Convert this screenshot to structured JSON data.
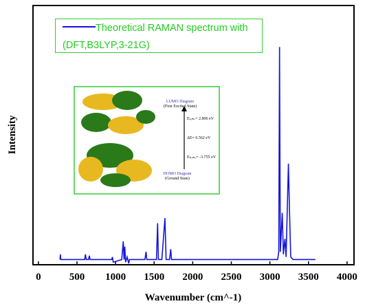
{
  "chart_data": {
    "type": "line",
    "xlabel": "Wavenumber (cm^-1)",
    "ylabel": "Intensity",
    "xlim": [
      -70,
      4090
    ],
    "xticks": [
      0,
      500,
      1000,
      1500,
      2000,
      2500,
      3000,
      3500,
      4000
    ],
    "ylim": [
      0,
      100
    ],
    "legend": "upper left",
    "series": [
      {
        "name": "Theoretical RAMAN spectrum with (DFT,B3LYP,3-21G)",
        "color": "#1414dc",
        "x": [
          280,
          285,
          290,
          600,
          610,
          620,
          650,
          660,
          670,
          950,
          960,
          970,
          1080,
          1100,
          1110,
          1120,
          1130,
          1150,
          1170,
          1180,
          1380,
          1395,
          1405,
          1530,
          1545,
          1555,
          1600,
          1640,
          1655,
          1700,
          1715,
          1725,
          2100,
          3100,
          3115,
          3125,
          3135,
          3160,
          3175,
          3195,
          3210,
          3240,
          3255,
          3270,
          3300,
          3590
        ],
        "values": [
          2,
          4,
          2,
          2,
          4,
          2,
          2,
          3.5,
          2,
          2,
          3,
          1,
          2,
          9,
          2,
          7,
          1,
          3,
          0.5,
          2,
          2,
          5,
          2,
          2,
          16,
          2,
          2,
          18,
          2,
          2,
          6,
          2,
          2,
          2,
          5,
          84,
          5,
          20,
          4,
          10,
          3,
          39,
          20,
          3,
          2,
          2
        ]
      }
    ],
    "inset": {
      "title": "LUMO Diagram",
      "subtitle": "(First Excited State)",
      "lumo": "Eₗᵤₘₒ= 2.806 eV",
      "gap": "ΔE= 6.562 eV",
      "homo": "Eₕₒₘₒ= -3.755 eV",
      "bottom_title": "HOMO Diagram",
      "bottom_subtitle": "(Ground State)"
    }
  }
}
